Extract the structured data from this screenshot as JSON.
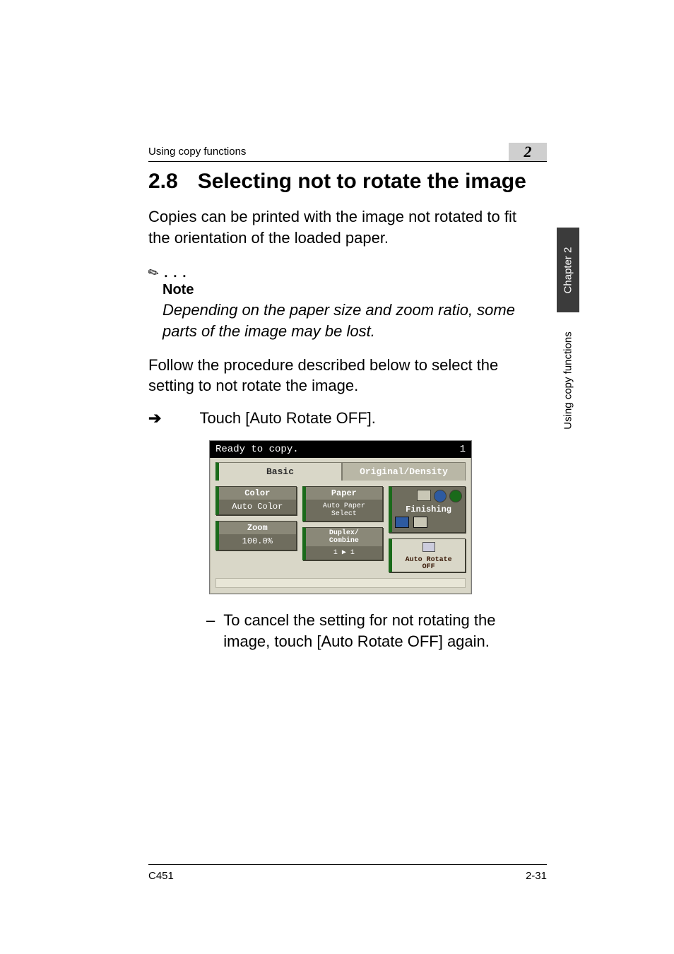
{
  "header": {
    "running_head": "Using copy functions",
    "chapter_number": "2"
  },
  "sidetabs": {
    "dark": "Chapter 2",
    "light": "Using copy functions"
  },
  "section": {
    "number": "2.8",
    "title": "Selecting not to rotate the image"
  },
  "paragraphs": {
    "intro": "Copies can be printed with the image not rotated to fit the orientation of the loaded paper.",
    "note_label": "Note",
    "note_body": "Depending on the paper size and zoom ratio, some parts of the image may be lost.",
    "follow": "Follow the procedure described below to select the setting to not rotate the image.",
    "step": "Touch [Auto Rotate OFF].",
    "sub": "To cancel the setting for not rotating the image, touch [Auto Rotate OFF] again."
  },
  "lcd": {
    "status_left": "Ready to copy.",
    "status_right": "1",
    "tab_basic": "Basic",
    "tab_origden": "Original/Density",
    "btn_color_hdr": "Color",
    "btn_color_val": "Auto Color",
    "btn_paper_hdr": "Paper",
    "btn_paper_val": "Auto Paper\nSelect",
    "btn_zoom_hdr": "Zoom",
    "btn_zoom_val": "100.0%",
    "btn_dup_hdr": "Duplex/\nCombine",
    "btn_dup_val": "1 ▶ 1",
    "finishing_label": "Finishing",
    "autorotate_label": "Auto Rotate\nOFF"
  },
  "footer": {
    "left": "C451",
    "right": "2-31"
  },
  "colors": {
    "page_bg": "#ffffff",
    "text": "#000000",
    "chapnum_bg": "#cfcfcf",
    "sidetab_dark_bg": "#3b3b3b",
    "lcd_bg": "#d9d7c8",
    "lcd_btn_bg": "#6f6d5e",
    "lcd_accent_green": "#1a6a1a",
    "lcd_border": "#3f3e33"
  }
}
